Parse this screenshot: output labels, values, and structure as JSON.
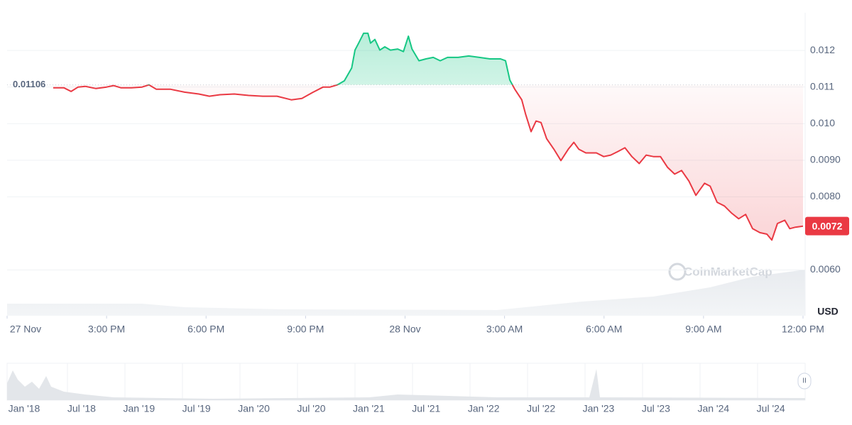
{
  "chart_data": {
    "type": "line",
    "x": [
      1.39,
      1.71,
      1.93,
      2.14,
      2.36,
      2.68,
      3,
      3.21,
      3.43,
      3.75,
      4.07,
      4.28,
      4.5,
      4.93,
      5.35,
      5.78,
      6.1,
      6.42,
      6.85,
      7.28,
      7.71,
      8.14,
      8.57,
      8.89,
      9.21,
      9.53,
      9.74,
      9.96,
      10.17,
      10.39,
      10.49,
      10.6,
      10.75,
      10.88,
      10.96,
      11.09,
      11.24,
      11.39,
      11.56,
      11.78,
      11.95,
      12.1,
      12.21,
      12.42,
      12.63,
      12.85,
      13.06,
      13.28,
      13.6,
      13.92,
      14.24,
      14.56,
      14.88,
      15.03,
      15.16,
      15.31,
      15.52,
      15.63,
      15.8,
      15.95,
      16.1,
      16.27,
      16.49,
      16.7,
      16.92,
      17.09,
      17.24,
      17.45,
      17.77,
      17.99,
      18.2,
      18.42,
      18.63,
      18.84,
      19.06,
      19.27,
      19.49,
      19.7,
      19.91,
      20.13,
      20.34,
      20.56,
      20.77,
      21.03,
      21.2,
      21.41,
      21.63,
      21.84,
      22.06,
      22.27,
      22.48,
      22.7,
      22.91,
      23.06,
      23.23,
      23.45,
      23.6,
      23.77,
      24
    ],
    "series": [
      {
        "name": "Price",
        "color": "#ea3943",
        "color_above": "#16c784",
        "values": [
          0.01098,
          0.01098,
          0.01088,
          0.011,
          0.01102,
          0.01096,
          0.011,
          0.01104,
          0.01098,
          0.01098,
          0.011,
          0.01106,
          0.01094,
          0.01094,
          0.01086,
          0.01081,
          0.01075,
          0.01079,
          0.01081,
          0.01077,
          0.01075,
          0.01075,
          0.01065,
          0.01069,
          0.01085,
          0.011,
          0.011,
          0.01106,
          0.01117,
          0.01152,
          0.01201,
          0.0122,
          0.01247,
          0.01247,
          0.0122,
          0.0123,
          0.01201,
          0.0121,
          0.01201,
          0.01204,
          0.01197,
          0.01239,
          0.01204,
          0.01172,
          0.01177,
          0.01181,
          0.01172,
          0.01181,
          0.01181,
          0.01185,
          0.01181,
          0.01177,
          0.01177,
          0.01172,
          0.01119,
          0.01094,
          0.01065,
          0.01027,
          0.00978,
          0.01007,
          0.01003,
          0.00959,
          0.0093,
          0.00899,
          0.0093,
          0.00949,
          0.0093,
          0.0092,
          0.0092,
          0.0091,
          0.00914,
          0.00924,
          0.00934,
          0.0091,
          0.00891,
          0.00914,
          0.0091,
          0.0091,
          0.00881,
          0.00862,
          0.00872,
          0.00843,
          0.00804,
          0.00837,
          0.00829,
          0.00785,
          0.00775,
          0.00756,
          0.0074,
          0.00752,
          0.00713,
          0.00702,
          0.00698,
          0.00682,
          0.00727,
          0.00736,
          0.00713,
          0.00717,
          0.0072
        ]
      }
    ],
    "baseline": 0.01106,
    "current_price": 0.0072,
    "xlim": [
      0,
      24
    ],
    "xticks": [
      {
        "value": 0,
        "label": "27 Nov"
      },
      {
        "value": 3,
        "label": "3:00 PM"
      },
      {
        "value": 6,
        "label": "6:00 PM"
      },
      {
        "value": 9,
        "label": "9:00 PM"
      },
      {
        "value": 12,
        "label": "28 Nov"
      },
      {
        "value": 15,
        "label": "3:00 AM"
      },
      {
        "value": 18,
        "label": "6:00 AM"
      },
      {
        "value": 21,
        "label": "9:00 AM"
      },
      {
        "value": 24,
        "label": "12:00 PM"
      }
    ],
    "ylim": [
      0.00475,
      0.01303
    ],
    "yticks": [
      0.012,
      0.011,
      {
        "value": 0.01,
        "label": "0.010"
      },
      {
        "value": 0.009,
        "label": "0.0090"
      },
      {
        "value": 0.008,
        "label": "0.0080"
      },
      {
        "value": 0.006,
        "label": "0.0060"
      }
    ],
    "y_unit": "USD",
    "grid": true,
    "watermark": "CoinMarketCap",
    "navigator": {
      "labels": [
        "Jan '18",
        "Jul '18",
        "Jan '19",
        "Jul '19",
        "Jan '20",
        "Jul '20",
        "Jan '21",
        "Jul '21",
        "Jan '22",
        "Jul '22",
        "Jan '23",
        "Jul '23",
        "Jan '24",
        "Jul '24"
      ]
    }
  }
}
